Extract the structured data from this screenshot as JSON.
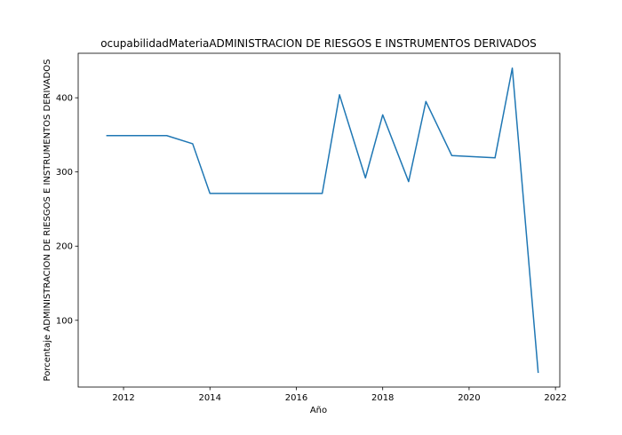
{
  "chart_data": {
    "type": "line",
    "title": "ocupabilidadMateriaADMINISTRACION DE RIESGOS E INSTRUMENTOS DERIVADOS",
    "xlabel": "Año",
    "ylabel": "Porcentaje ADMINISTRACION DE RIESGOS E INSTRUMENTOS DERIVADOS",
    "xlim": [
      2010.95,
      2022.1
    ],
    "ylim": [
      10,
      460
    ],
    "x_ticks": [
      2012,
      2014,
      2016,
      2018,
      2020,
      2022
    ],
    "y_ticks": [
      100,
      200,
      300,
      400
    ],
    "grid": false,
    "series": [
      {
        "color": "#1f77b4",
        "x": [
          2011.6,
          2013.0,
          2013.6,
          2014.0,
          2016.0,
          2016.6,
          2017.0,
          2017.6,
          2018.0,
          2018.6,
          2019.0,
          2019.6,
          2020.6,
          2021.0,
          2021.6
        ],
        "y": [
          349,
          349,
          338,
          271,
          271,
          271,
          404,
          292,
          377,
          287,
          395,
          322,
          319,
          440,
          29
        ]
      }
    ]
  }
}
